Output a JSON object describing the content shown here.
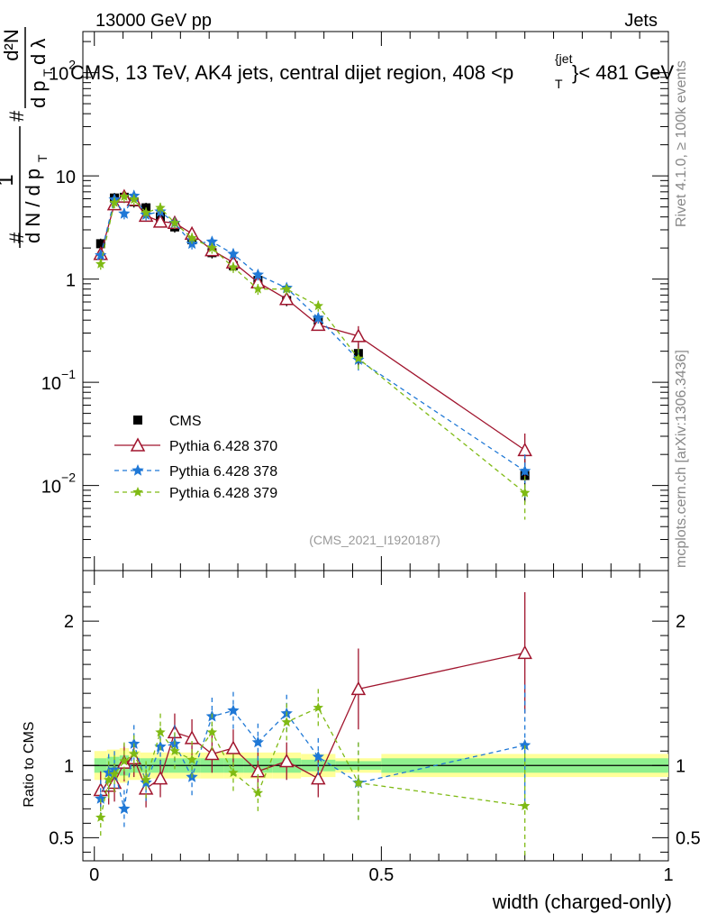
{
  "header": {
    "left": "13000 GeV pp",
    "right": "Jets",
    "plot_title": "CMS, 13 TeV, AK4 jets, central dijet region, 408 <p",
    "plot_title_sup": "{jet",
    "plot_title_sub": "T",
    "plot_title_end": "}< 481 GeV",
    "analysis_id": "(CMS_2021_I1920187)",
    "side_rivet": "Rivet 4.1.0, ≥ 100k events",
    "side_site": "mcplots.cern.ch [arXiv:1306.3436]"
  },
  "colors": {
    "cms": "#000000",
    "p370": "#a0142d",
    "p378": "#1f78d6",
    "p379": "#7fba14",
    "band_inner": "#8ef08e",
    "band_outer": "#ffff99"
  },
  "chart_data": [
    {
      "type": "scatter",
      "title": "CMS, 13 TeV, AK4 jets, central dijet region, 408 < p_T^{jet} < 481 GeV",
      "xlabel": "width (charged-only)",
      "ylabel": "1/dN/dp_T  d²N/(dp_T dλ)",
      "yscale": "log",
      "xlim": [
        -0.02,
        1.0
      ],
      "ylim": [
        0.0015,
        250
      ],
      "y_ticks": [
        {
          "v": 0.01,
          "b": "10",
          "e": "−2"
        },
        {
          "v": 0.1,
          "b": "10",
          "e": "−1"
        },
        {
          "v": 1,
          "b": "1",
          "e": ""
        },
        {
          "v": 10,
          "b": "10",
          "e": ""
        },
        {
          "v": 100,
          "b": "10",
          "e": "2"
        }
      ],
      "legend_position": "lower-left",
      "series": [
        {
          "name": "CMS",
          "key": "cms",
          "x": [
            0.011,
            0.035,
            0.052,
            0.069,
            0.09,
            0.115,
            0.14,
            0.17,
            0.205,
            0.242,
            0.285,
            0.335,
            0.39,
            0.46,
            0.75
          ],
          "y": [
            2.2,
            6.1,
            6.2,
            5.6,
            4.9,
            4.0,
            3.2,
            2.4,
            1.8,
            1.35,
            0.97,
            0.62,
            0.4,
            0.19,
            0.0125
          ]
        },
        {
          "name": "Pythia 6.428 370",
          "key": "p370",
          "x": [
            0.011,
            0.035,
            0.052,
            0.069,
            0.09,
            0.115,
            0.14,
            0.17,
            0.205,
            0.242,
            0.285,
            0.335,
            0.39,
            0.46,
            0.75
          ],
          "y": [
            1.75,
            5.3,
            6.3,
            5.85,
            4.1,
            3.6,
            3.5,
            2.75,
            1.9,
            1.45,
            0.93,
            0.64,
            0.36,
            0.28,
            0.022
          ]
        },
        {
          "name": "Pythia 6.428 378",
          "key": "p378",
          "x": [
            0.011,
            0.035,
            0.052,
            0.069,
            0.09,
            0.115,
            0.14,
            0.17,
            0.205,
            0.242,
            0.285,
            0.335,
            0.39,
            0.46,
            0.75
          ],
          "y": [
            1.7,
            5.9,
            4.3,
            6.4,
            4.2,
            4.5,
            3.5,
            2.2,
            2.3,
            1.75,
            1.1,
            0.82,
            0.42,
            0.165,
            0.0138
          ]
        },
        {
          "name": "Pythia 6.428 379",
          "key": "p379",
          "x": [
            0.011,
            0.035,
            0.052,
            0.069,
            0.09,
            0.115,
            0.14,
            0.17,
            0.205,
            0.242,
            0.285,
            0.335,
            0.39,
            0.46,
            0.75
          ],
          "y": [
            1.4,
            5.5,
            6.3,
            5.9,
            4.4,
            4.9,
            3.5,
            2.5,
            2.0,
            1.3,
            0.8,
            0.8,
            0.55,
            0.17,
            0.0085
          ]
        }
      ]
    },
    {
      "type": "line",
      "title": "Ratio to CMS",
      "xlabel": "width (charged-only)",
      "ylabel": "Ratio to CMS",
      "xlim": [
        -0.02,
        1.0
      ],
      "ylim": [
        0.34,
        2.35
      ],
      "x_ticks": [
        {
          "v": 0,
          "label": "0"
        },
        {
          "v": 0.5,
          "label": "0.5"
        },
        {
          "v": 1,
          "label": "1"
        }
      ],
      "y_ticks": [
        {
          "v": 0.5,
          "label": "0.5"
        },
        {
          "v": 1,
          "label": "1"
        },
        {
          "v": 2,
          "label": "2"
        }
      ],
      "reference_line": 1,
      "series": [
        {
          "name": "Pythia 6.428 370",
          "key": "p370",
          "x": [
            0.011,
            0.025,
            0.035,
            0.052,
            0.069,
            0.09,
            0.115,
            0.14,
            0.17,
            0.205,
            0.242,
            0.285,
            0.335,
            0.39,
            0.46,
            0.75
          ],
          "y": [
            0.83,
            0.86,
            0.88,
            1.02,
            1.05,
            0.84,
            0.91,
            1.23,
            1.19,
            1.08,
            1.12,
            0.96,
            1.03,
            0.91,
            1.53,
            1.78
          ]
        },
        {
          "name": "Pythia 6.428 378",
          "key": "p378",
          "x": [
            0.011,
            0.025,
            0.035,
            0.052,
            0.069,
            0.09,
            0.115,
            0.14,
            0.17,
            0.205,
            0.242,
            0.285,
            0.335,
            0.39,
            0.46,
            0.75
          ],
          "y": [
            0.77,
            0.95,
            0.97,
            0.7,
            1.15,
            0.88,
            1.13,
            1.15,
            0.92,
            1.34,
            1.38,
            1.16,
            1.36,
            1.06,
            0.88,
            1.14
          ]
        },
        {
          "name": "Pythia 6.428 379",
          "key": "p379",
          "x": [
            0.011,
            0.025,
            0.035,
            0.052,
            0.069,
            0.09,
            0.115,
            0.14,
            0.17,
            0.205,
            0.242,
            0.285,
            0.335,
            0.39,
            0.46,
            0.75
          ],
          "y": [
            0.64,
            0.9,
            0.94,
            1.03,
            1.08,
            0.9,
            1.23,
            1.1,
            1.04,
            1.23,
            0.95,
            0.81,
            1.3,
            1.4,
            0.88,
            0.72
          ]
        }
      ]
    }
  ]
}
